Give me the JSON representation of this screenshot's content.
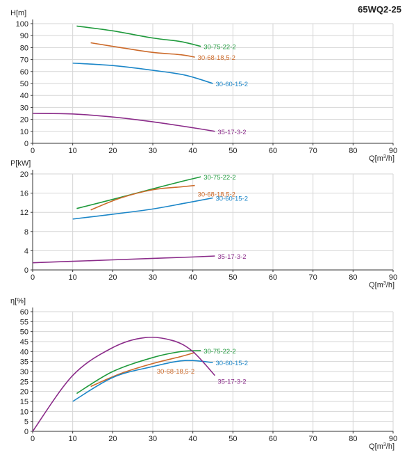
{
  "chart_title": "65WQ2-25",
  "chart_data": [
    {
      "type": "line",
      "id": "head",
      "ylabel": "H[m]",
      "xlabel": "Q[m³/h]",
      "xlim": [
        0,
        90
      ],
      "ylim": [
        0,
        100
      ],
      "xticks": [
        0,
        10,
        20,
        30,
        40,
        50,
        60,
        70,
        80,
        90
      ],
      "yticks": [
        0,
        10,
        20,
        30,
        40,
        50,
        60,
        70,
        80,
        90,
        100
      ],
      "grid": true,
      "series": [
        {
          "name": "30-75-22-2",
          "color": "#1f9a3c",
          "x": [
            11,
            20,
            30,
            37,
            42
          ],
          "y": [
            98,
            94,
            88,
            85,
            81
          ]
        },
        {
          "name": "30-68-18,5-2",
          "color": "#cc6a2a",
          "x": [
            14.5,
            22,
            30,
            37,
            40.5
          ],
          "y": [
            84,
            80,
            76,
            74,
            72
          ]
        },
        {
          "name": "30-60-15-2",
          "color": "#1b86c8",
          "x": [
            10,
            20,
            30,
            38,
            45
          ],
          "y": [
            67,
            65,
            61,
            57,
            50
          ]
        },
        {
          "name": "35-17-3-2",
          "color": "#8b2c8a",
          "x": [
            0,
            10,
            20,
            30,
            40,
            45.5
          ],
          "y": [
            25,
            24.5,
            22,
            18,
            13,
            10
          ]
        }
      ]
    },
    {
      "type": "line",
      "id": "power",
      "ylabel": "P[kW]",
      "xlabel": "Q[m³/h]",
      "xlim": [
        0,
        90
      ],
      "ylim": [
        0,
        20
      ],
      "xticks": [
        0,
        10,
        20,
        30,
        40,
        50,
        60,
        70,
        80,
        90
      ],
      "yticks": [
        0,
        4,
        8,
        12,
        16,
        20
      ],
      "grid": true,
      "series": [
        {
          "name": "30-75-22-2",
          "color": "#1f9a3c",
          "x": [
            11,
            20,
            30,
            37,
            42
          ],
          "y": [
            12.8,
            14.7,
            16.9,
            18.4,
            19.4
          ]
        },
        {
          "name": "30-68-18,5-2",
          "color": "#cc6a2a",
          "x": [
            14.5,
            22,
            30,
            37,
            40.5
          ],
          "y": [
            12.5,
            15.0,
            16.7,
            17.3,
            17.6
          ]
        },
        {
          "name": "30-60-15-2",
          "color": "#1b86c8",
          "x": [
            10,
            20,
            30,
            38,
            45
          ],
          "y": [
            10.6,
            11.6,
            12.7,
            13.9,
            15.0
          ]
        },
        {
          "name": "35-17-3-2",
          "color": "#8b2c8a",
          "x": [
            0,
            10,
            20,
            30,
            40,
            45.5
          ],
          "y": [
            1.5,
            1.8,
            2.1,
            2.4,
            2.7,
            2.9
          ]
        }
      ]
    },
    {
      "type": "line",
      "id": "efficiency",
      "ylabel": "η[%]",
      "xlabel": "Q[m³/h]",
      "xlim": [
        0,
        90
      ],
      "ylim": [
        0,
        60
      ],
      "xticks": [
        0,
        10,
        20,
        30,
        40,
        50,
        60,
        70,
        80,
        90
      ],
      "yticks": [
        0,
        5,
        10,
        15,
        20,
        25,
        30,
        35,
        40,
        45,
        50,
        55,
        60
      ],
      "grid": true,
      "series": [
        {
          "name": "30-75-22-2",
          "color": "#1f9a3c",
          "x": [
            11,
            20,
            30,
            37,
            42
          ],
          "y": [
            19,
            30,
            37,
            40,
            40.5
          ]
        },
        {
          "name": "30-68-18,5-2",
          "color": "#cc6a2a",
          "x": [
            14.5,
            22,
            30,
            37,
            40.5
          ],
          "y": [
            22.5,
            29,
            34,
            37.5,
            39.5
          ]
        },
        {
          "name": "30-60-15-2",
          "color": "#1b86c8",
          "x": [
            10,
            20,
            30,
            38,
            45
          ],
          "y": [
            15,
            27,
            32.5,
            35.5,
            34.5
          ]
        },
        {
          "name": "35-17-3-2",
          "color": "#8b2c8a",
          "x": [
            0,
            10,
            20,
            28,
            35,
            40,
            45.5
          ],
          "y": [
            0,
            28,
            42,
            47,
            45.5,
            40,
            28
          ]
        }
      ]
    }
  ]
}
